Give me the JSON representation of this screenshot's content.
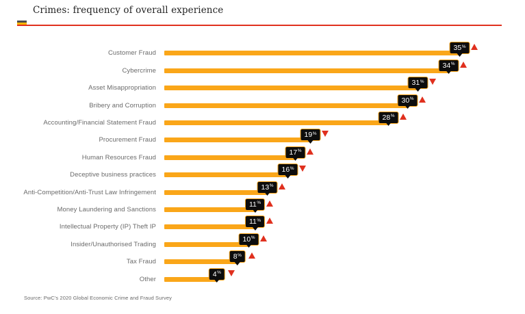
{
  "header": {
    "title": "Crimes: frequency of overall experience"
  },
  "footer": {
    "source": "Source: PwC's 2020 Global Economic Crime and Fraud Survey"
  },
  "colors": {
    "bar": "#FAA619",
    "badge_bg": "#0D0D0D",
    "badge_border": "#F9A51A",
    "arrow_red": "#E0301E",
    "header_rule_red": "#E0301E",
    "accent_gray": "#4D4D4D",
    "accent_yellow": "#FFB600",
    "label_gray": "#696969",
    "title_color": "#232323"
  },
  "chart_data": {
    "type": "bar",
    "orientation": "horizontal",
    "title": "Crimes: frequency of overall experience",
    "xlabel": "",
    "ylabel": "",
    "value_suffix": "%",
    "grid": false,
    "legend": false,
    "categories": [
      "Customer Fraud",
      "Cybercrime",
      "Asset Misappropriation",
      "Bribery and Corruption",
      "Accounting/Financial Statement Fraud",
      "Procurement Fraud",
      "Human Resources Fraud",
      "Deceptive business practices",
      "Anti-Competition/Anti-Trust Law Infringement",
      "Money Laundering and Sanctions",
      "Intellectual Property (IP) Theft IP",
      "Insider/Unauthorised Trading",
      "Tax Fraud",
      "Other"
    ],
    "values": [
      35,
      34,
      31,
      30,
      28,
      19,
      17,
      16,
      13,
      11,
      11,
      10,
      8,
      4
    ],
    "trends": [
      "up",
      "up",
      "down",
      "up",
      "up",
      "down",
      "up",
      "down",
      "up",
      "up",
      "up",
      "up",
      "up",
      "down"
    ]
  }
}
